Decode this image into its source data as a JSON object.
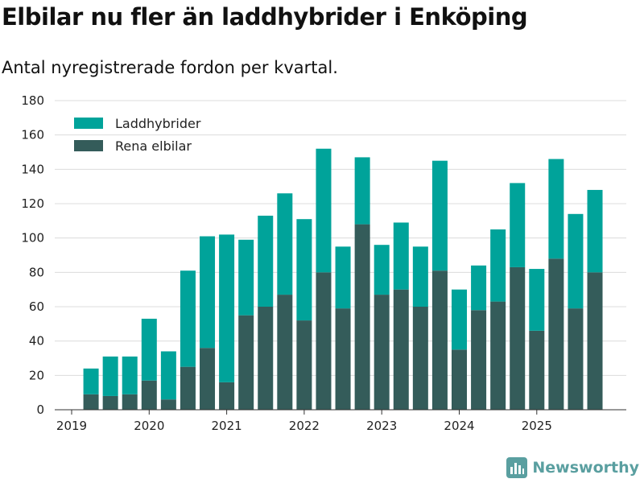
{
  "header": {
    "title": "Elbilar nu fler än laddhybrider i Enköping",
    "subtitle": "Antal nyregistrerade fordon per kvartal."
  },
  "brand": {
    "name": "Newsworthy",
    "icon": "bar-chart-logo-icon"
  },
  "colors": {
    "laddhybrider": "#00a39a",
    "elbilar": "#345c5a",
    "grid": "#dcdcdc",
    "brand": "#5a9fa0"
  },
  "chart_data": {
    "type": "bar",
    "stacked": true,
    "title": "Elbilar nu fler än laddhybrider i Enköping",
    "subtitle": "Antal nyregistrerade fordon per kvartal.",
    "xlabel": "",
    "ylabel": "",
    "ylim": [
      0,
      180
    ],
    "yticks": [
      0,
      20,
      40,
      60,
      80,
      100,
      120,
      140,
      160,
      180
    ],
    "xtick_labels": [
      "2019",
      "2020",
      "2021",
      "2022",
      "2023",
      "2024",
      "2025"
    ],
    "legend_position": "top-left",
    "grid": true,
    "categories": [
      "2019 Q2",
      "2019 Q3",
      "2019 Q4",
      "2020 Q1",
      "2020 Q2",
      "2020 Q3",
      "2020 Q4",
      "2021 Q1",
      "2021 Q2",
      "2021 Q3",
      "2021 Q4",
      "2022 Q1",
      "2022 Q2",
      "2022 Q3",
      "2022 Q4",
      "2023 Q1",
      "2023 Q2",
      "2023 Q3",
      "2023 Q4",
      "2024 Q1",
      "2024 Q2",
      "2024 Q3",
      "2024 Q4",
      "2025 Q1",
      "2025 Q2",
      "2025 Q3",
      "2025 Q4"
    ],
    "series": [
      {
        "name": "Rena elbilar",
        "values": [
          9,
          8,
          9,
          17,
          6,
          25,
          36,
          16,
          55,
          60,
          67,
          52,
          80,
          59,
          108,
          67,
          70,
          60,
          81,
          35,
          58,
          63,
          83,
          46,
          88,
          59,
          80
        ]
      },
      {
        "name": "Laddhybrider",
        "values": [
          15,
          23,
          22,
          36,
          28,
          56,
          65,
          86,
          44,
          53,
          59,
          59,
          72,
          36,
          39,
          29,
          39,
          35,
          64,
          35,
          26,
          42,
          49,
          36,
          58,
          55,
          48
        ]
      }
    ]
  }
}
